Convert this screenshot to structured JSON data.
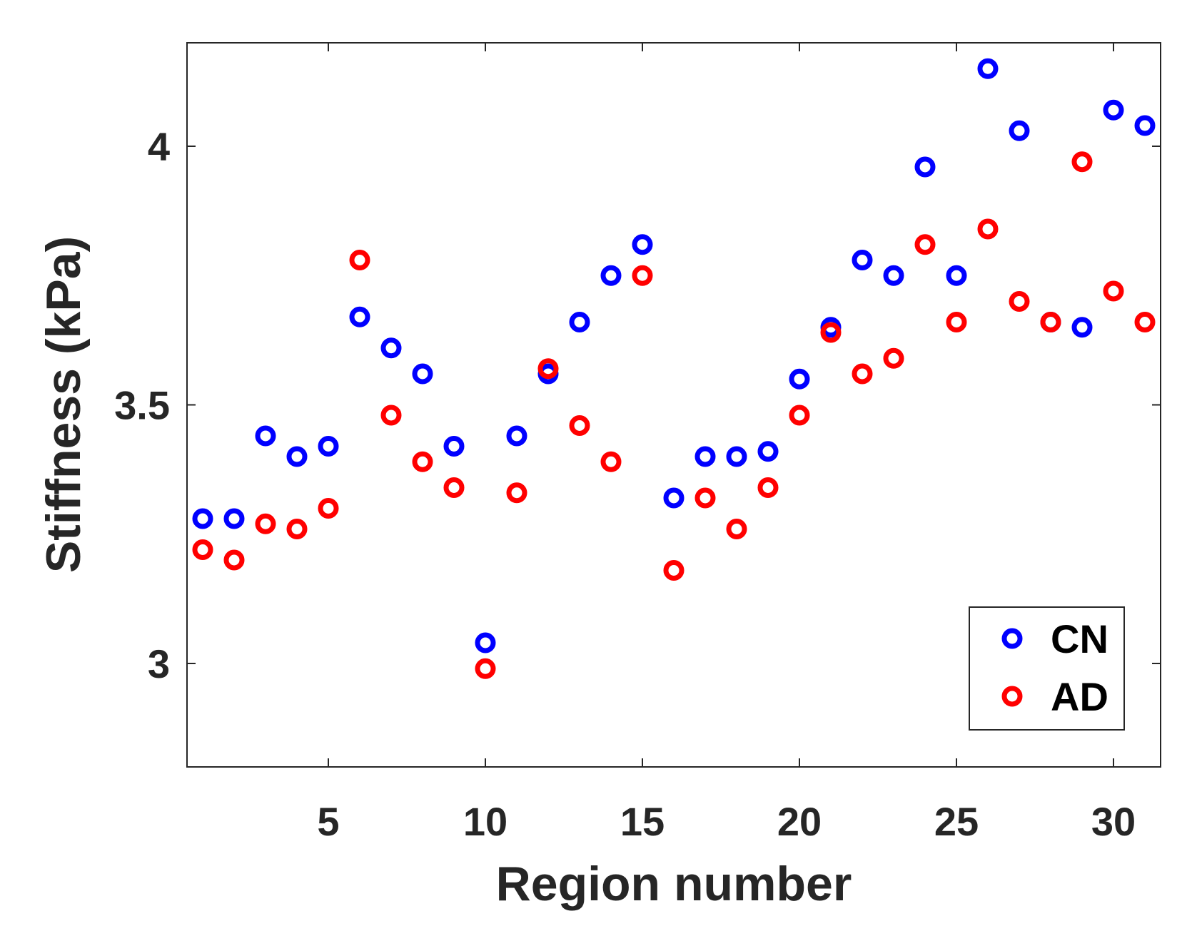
{
  "chart_data": {
    "type": "scatter",
    "title": "",
    "xlabel": "Region number",
    "ylabel": "Stiffness (kPa)",
    "xlim": [
      0.5,
      31.5
    ],
    "ylim": [
      2.8,
      4.2
    ],
    "xticks": [
      5,
      10,
      15,
      20,
      25,
      30
    ],
    "xtick_labels": [
      "5",
      "10",
      "15",
      "20",
      "25",
      "30"
    ],
    "yticks": [
      3,
      3.5,
      4
    ],
    "ytick_labels": [
      "3",
      "3.5",
      "4"
    ],
    "grid": false,
    "legend_position": "bottom-right",
    "x": [
      1,
      2,
      3,
      4,
      5,
      6,
      7,
      8,
      9,
      10,
      11,
      12,
      13,
      14,
      15,
      16,
      17,
      18,
      19,
      20,
      21,
      22,
      23,
      24,
      25,
      26,
      27,
      28,
      29,
      30,
      31
    ],
    "series": [
      {
        "name": "CN",
        "color": "#0000ff",
        "values": [
          3.28,
          3.28,
          3.44,
          3.4,
          3.42,
          3.67,
          3.61,
          3.56,
          3.42,
          3.04,
          3.44,
          3.56,
          3.66,
          3.75,
          3.81,
          3.32,
          3.4,
          3.4,
          3.41,
          3.55,
          3.65,
          3.78,
          3.75,
          3.96,
          3.75,
          4.15,
          4.03,
          3.66,
          3.65,
          4.07,
          4.04
        ]
      },
      {
        "name": "AD",
        "color": "#ff0000",
        "values": [
          3.22,
          3.2,
          3.27,
          3.26,
          3.3,
          3.78,
          3.48,
          3.39,
          3.34,
          2.99,
          3.33,
          3.57,
          3.46,
          3.39,
          3.75,
          3.18,
          3.32,
          3.26,
          3.34,
          3.48,
          3.64,
          3.56,
          3.59,
          3.81,
          3.66,
          3.84,
          3.7,
          3.66,
          3.97,
          3.72,
          3.66
        ]
      }
    ]
  }
}
